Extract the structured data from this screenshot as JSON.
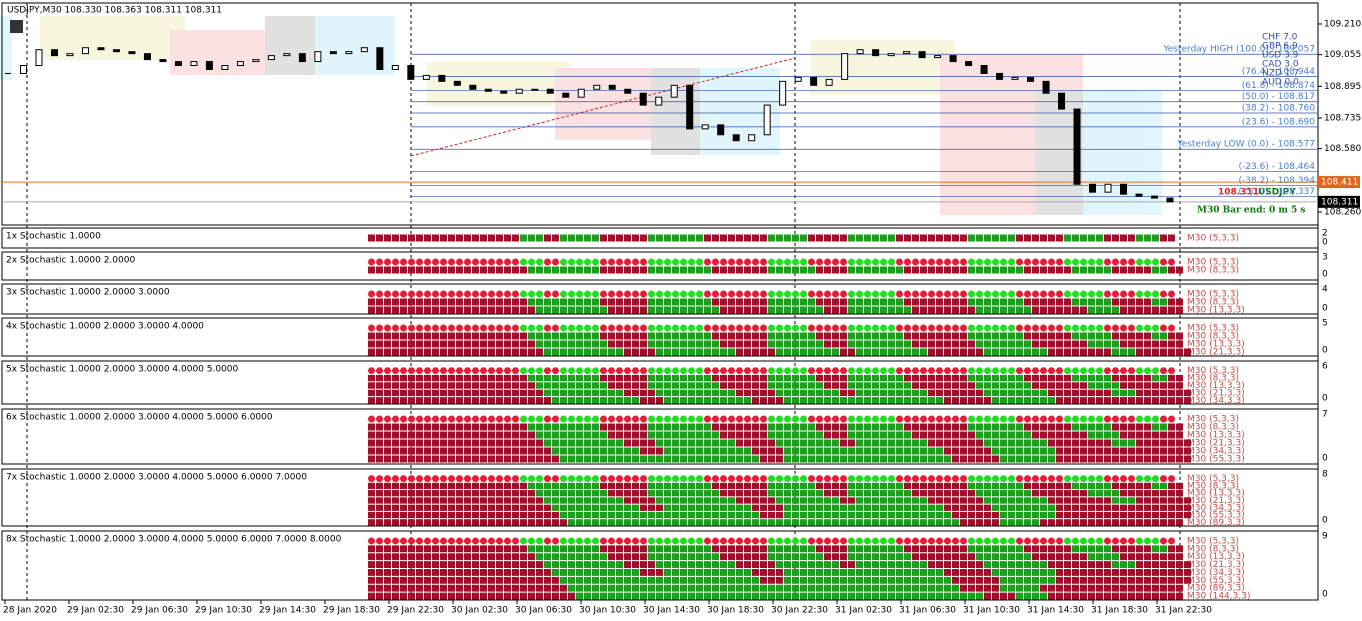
{
  "header": "USDJPY,M30  108.330 108.363 108.311 108.311",
  "main": {
    "ylim": [
      108.194,
      109.316
    ],
    "yticks": [
      {
        "value": 109.21,
        "label": "109.210"
      },
      109.055,
      108.895,
      108.735,
      {
        "value": 108.58,
        "label": "108.580"
      },
      {
        "value": 108.26,
        "label": "108.260"
      }
    ],
    "closes": [
      108.96,
      109.0,
      109.08,
      109.05,
      109.06,
      109.09,
      109.08,
      109.07,
      109.06,
      109.03,
      109.02,
      109.0,
      109.02,
      108.98,
      109.0,
      109.02,
      109.03,
      109.05,
      109.06,
      109.02,
      109.07,
      109.06,
      109.07,
      109.09,
      108.98,
      109.0,
      108.93,
      108.95,
      108.92,
      108.9,
      108.88,
      108.87,
      108.86,
      108.88,
      108.88,
      108.86,
      108.84,
      108.88,
      108.9,
      108.88,
      108.86,
      108.8,
      108.84,
      108.9,
      108.68,
      108.7,
      108.65,
      108.62,
      108.65,
      108.8,
      108.92,
      108.94,
      108.9,
      108.93,
      109.06,
      109.08,
      109.05,
      109.06,
      109.07,
      109.04,
      109.05,
      109.02,
      109.0,
      108.96,
      108.93,
      108.94,
      108.92,
      108.86,
      108.78,
      108.4,
      108.36,
      108.4,
      108.35,
      108.34,
      108.33,
      108.311
    ],
    "fib_levels": [
      {
        "label": "Yesterday HIGH (100.0) - 109.057",
        "price": 109.057
      },
      {
        "label": "(76.4) - 108.944",
        "price": 108.944
      },
      {
        "label": "(61.8) - 108.874",
        "price": 108.874
      },
      {
        "label": "(50.0) - 108.817",
        "price": 108.817
      },
      {
        "label": "(38.2) - 108.760",
        "price": 108.76
      },
      {
        "label": "(23.6) - 108.690",
        "price": 108.69
      },
      {
        "label": "Yesterday LOW (0.0) - 108.577",
        "price": 108.577
      },
      {
        "label": "(-23.6) - 108.464",
        "price": 108.464
      },
      {
        "label": "(-38.2) - 108.394",
        "price": 108.394
      },
      {
        "label": "(-50.0) - 108.337",
        "price": 108.337
      }
    ],
    "ask_label": {
      "value": 108.411,
      "label": "108.411"
    },
    "bid_label": {
      "value": 108.311,
      "label": "108.311"
    },
    "price_symbol": [
      "108.311",
      "USDJPY"
    ],
    "bar_timer": "M30 Bar end: 0 m 5 s",
    "strength": [
      "CHF  7.0",
      "GBP  6.9",
      "USD  3.9",
      "CAD  3.0",
      "NZD  1.7",
      "AUD  0.0"
    ]
  },
  "row_labels": [
    "M30 (5,3,3)",
    "M30 (8,3,3)",
    "M30 (13,3,3)",
    "M30 (21,3,3)",
    "M30 (34,3,3)",
    "M30 (55,3,3)",
    "M30 (89,3,3)",
    "M30 (144,3,3)"
  ],
  "states": [
    "RRRRRRRRRRRRRRRRRRRGGGRRGGGGGRRRRRRGGGGGGGRRRRRRRRGGGGGRRRRRGGGGGGRRRRRRRRRGGGGGGRRRRRRGGGGGRRRRGGGRR",
    "RRRRRRRRRRRRRRRRRRRRGGGGGGGGGRRRRRRGGGGGGGGRRRRRRRGGGGGGRRRRGGGGGGGRRRRRRRRGGGGGGGRRRRRRGGGGGRRRRRGGRR",
    "RRRRRRRRRRRRRRRRRRRRRGGGGGGGGGRRRRRGGGGGGGGGRRRRRRGGGGGGGRRRGGGGGGGGRRRRRRRRGGGGGGGRRRRRRRGGGGRRRRRRRR",
    "RRRRRRRRRRRRRRRRRRRRRRGGGGGGGGGGRRRRGGGGGGGGGGRRRRRGGGGGGGGRRGGGGGGGGGRRRRRRRGGGGGGGGRRRRRRRRGGGRRRRRRR",
    "RRRRRRRRRRRRRRRRRRRRRRRGGGGGGGGGGGRRRGGGGGGGGGGGRRRRGGGGGGGGGGGGGGGGGGGGRRRRRRGGGGGGGGRRRRRRRRRRRRRRRRR",
    "RRRRRRRRRRRRRRRRRRRRRRRRGGGGGGGGGGGGGGGGGGGGGGGGGRRRGGGGGGGGGGGGGGGGGGGGGRRRRRRGGGGGGGRRRRRRRRRRRRRRRRR",
    "RRRRRRRRRRRRRRRRRRRRRRRRRGGGGGGGGGGGGGGGGGGGGGGGGGGGGGGGGGGGGGGGGGGGGGGGGGRRRRRGGGGGRRRRRRRRRRRRRRRRRR",
    "RRRRRRRRRRRRRRRRRRRRRRRRRRGGGGGGGGGGGGGGGGGGGGGGGGGGGGGGGGGGGGGGGGGGGGGGGGGGGRRRRGGGGRRRRRRRRRRRRRRRRR"
  ],
  "panels": [
    {
      "label": "1x Stochastic 1.0000",
      "scale_top": 2,
      "scale_bottom": 0
    },
    {
      "label": "2x Stochastic 1.0000 2.0000",
      "scale_top": 3,
      "scale_bottom": 0
    },
    {
      "label": "3x Stochastic 1.0000 2.0000 3.0000",
      "scale_top": 4,
      "scale_bottom": 0
    },
    {
      "label": "4x Stochastic 1.0000 2.0000 3.0000 4.0000",
      "scale_top": 5,
      "scale_bottom": 0
    },
    {
      "label": "5x Stochastic 1.0000 2.0000 3.0000 4.0000 5.0000",
      "scale_top": 6,
      "scale_bottom": 0
    },
    {
      "label": "6x Stochastic 1.0000 2.0000 3.0000 4.0000 5.0000 6.0000",
      "scale_top": 7,
      "scale_bottom": 0
    },
    {
      "label": "7x Stochastic 1.0000 2.0000 3.0000 4.0000 5.0000 6.0000 7.0000",
      "scale_top": 8,
      "scale_bottom": 0
    },
    {
      "label": "8x Stochastic 1.0000 2.0000 3.0000 4.0000 5.0000 6.0000 7.0000 8.0000",
      "scale_top": 9,
      "scale_bottom": 0
    }
  ],
  "time_labels": [
    "28 Jan 2020",
    "29 Jan 02:30",
    "29 Jan 06:30",
    "29 Jan 10:30",
    "29 Jan 14:30",
    "29 Jan 18:30",
    "29 Jan 22:30",
    "30 Jan 02:30",
    "30 Jan 06:30",
    "30 Jan 10:30",
    "30 Jan 14:30",
    "30 Jan 18:30",
    "30 Jan 22:30",
    "31 Jan 02:30",
    "31 Jan 06:30",
    "31 Jan 10:30",
    "31 Jan 14:30",
    "31 Jan 18:30",
    "31 Jan 22:30"
  ]
}
